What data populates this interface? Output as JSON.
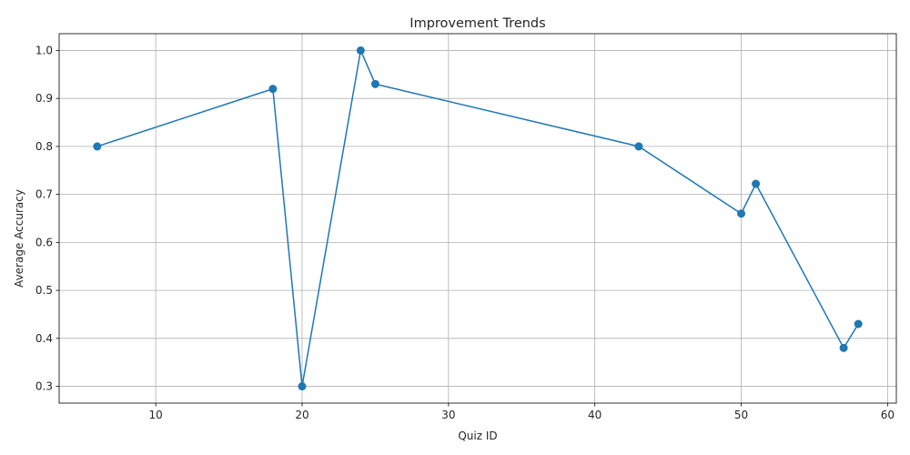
{
  "chart_data": {
    "type": "line",
    "title": "Improvement Trends",
    "xlabel": "Quiz ID",
    "ylabel": "Average Accuracy",
    "xlim": [
      3.4,
      60.6
    ],
    "ylim": [
      0.265,
      1.035
    ],
    "xticks": [
      10,
      20,
      30,
      40,
      50,
      60
    ],
    "yticks": [
      0.3,
      0.4,
      0.5,
      0.6,
      0.7,
      0.8,
      0.9,
      1.0
    ],
    "xtick_labels": [
      "10",
      "20",
      "30",
      "40",
      "50",
      "60"
    ],
    "ytick_labels": [
      "0.3",
      "0.4",
      "0.5",
      "0.6",
      "0.7",
      "0.8",
      "0.9",
      "1.0"
    ],
    "grid": true,
    "marker": "circle",
    "series": [
      {
        "x": [
          6,
          18,
          20,
          24,
          25,
          43,
          50,
          51,
          57,
          58
        ],
        "values": [
          0.8,
          0.92,
          0.3,
          1.0,
          0.93,
          0.8,
          0.66,
          0.722,
          0.38,
          0.43
        ],
        "color": "#1f77b4"
      }
    ]
  }
}
